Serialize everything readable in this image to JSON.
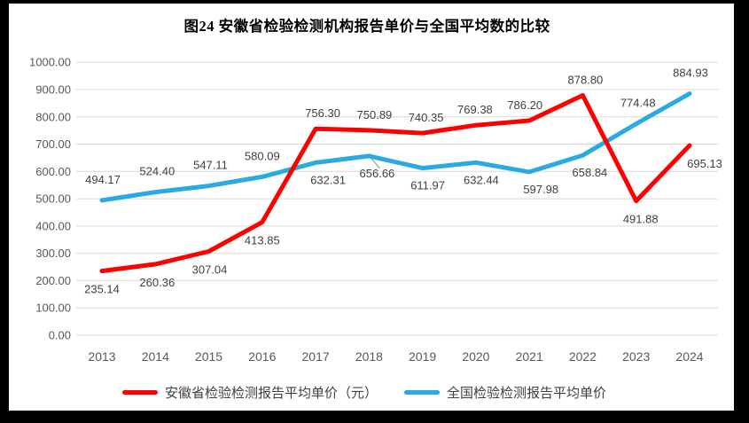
{
  "title": "图24 安徽省检验检测机构报告单价与全国平均数的比较",
  "chart_data": {
    "type": "line",
    "categories": [
      "2013",
      "2014",
      "2015",
      "2016",
      "2017",
      "2018",
      "2019",
      "2020",
      "2021",
      "2022",
      "2023",
      "2024"
    ],
    "series": [
      {
        "name": "安徽省检验检测报告平均单价（元）",
        "color": "#FF0000",
        "values": [
          235.14,
          260.36,
          307.04,
          413.85,
          756.3,
          750.89,
          740.35,
          769.38,
          786.2,
          878.8,
          491.88,
          695.13
        ],
        "label_side": [
          "below",
          "below",
          "below",
          "below",
          "above",
          "above",
          "above",
          "above",
          "above",
          "above",
          "below",
          "below"
        ],
        "label_dx": [
          0,
          2,
          1,
          0,
          8,
          6,
          4,
          -1,
          -5,
          3,
          5,
          17
        ],
        "label_dy_above": -13,
        "label_dy_below": 25
      },
      {
        "name": "全国检验检测报告平均单价",
        "color": "#29ABE2",
        "values": [
          494.17,
          524.4,
          547.11,
          580.09,
          632.31,
          656.66,
          611.97,
          632.44,
          597.98,
          658.84,
          774.48,
          884.93
        ],
        "label_side": [
          "above",
          "above",
          "above",
          "above",
          "below",
          "below",
          "below",
          "below",
          "below",
          "below",
          "above",
          "above"
        ],
        "label_dx": [
          1,
          2,
          2,
          0,
          14,
          9,
          6,
          6,
          13,
          8,
          2,
          1
        ],
        "label_dy_above": -19,
        "label_dy_below": 24
      }
    ],
    "title": "图24 安徽省检验检测机构报告单价与全国平均数的比较",
    "xlabel": "",
    "ylabel": "",
    "ylim": [
      0,
      1000
    ],
    "ytick_step": 100,
    "yticks": [
      "0.00",
      "100.00",
      "200.00",
      "300.00",
      "400.00",
      "500.00",
      "600.00",
      "700.00",
      "800.00",
      "900.00",
      "1000.00"
    ],
    "grid": true,
    "legend_position": "bottom"
  },
  "colors": {
    "anhui_line": "#FF0000",
    "national_line": "#29ABE2",
    "gridline": "#D9D9D9",
    "axis_text": "#595959",
    "data_label_text": "#404040",
    "frame": "#000000",
    "background": "#FFFFFF",
    "leader_line": "#A6A6A6"
  }
}
